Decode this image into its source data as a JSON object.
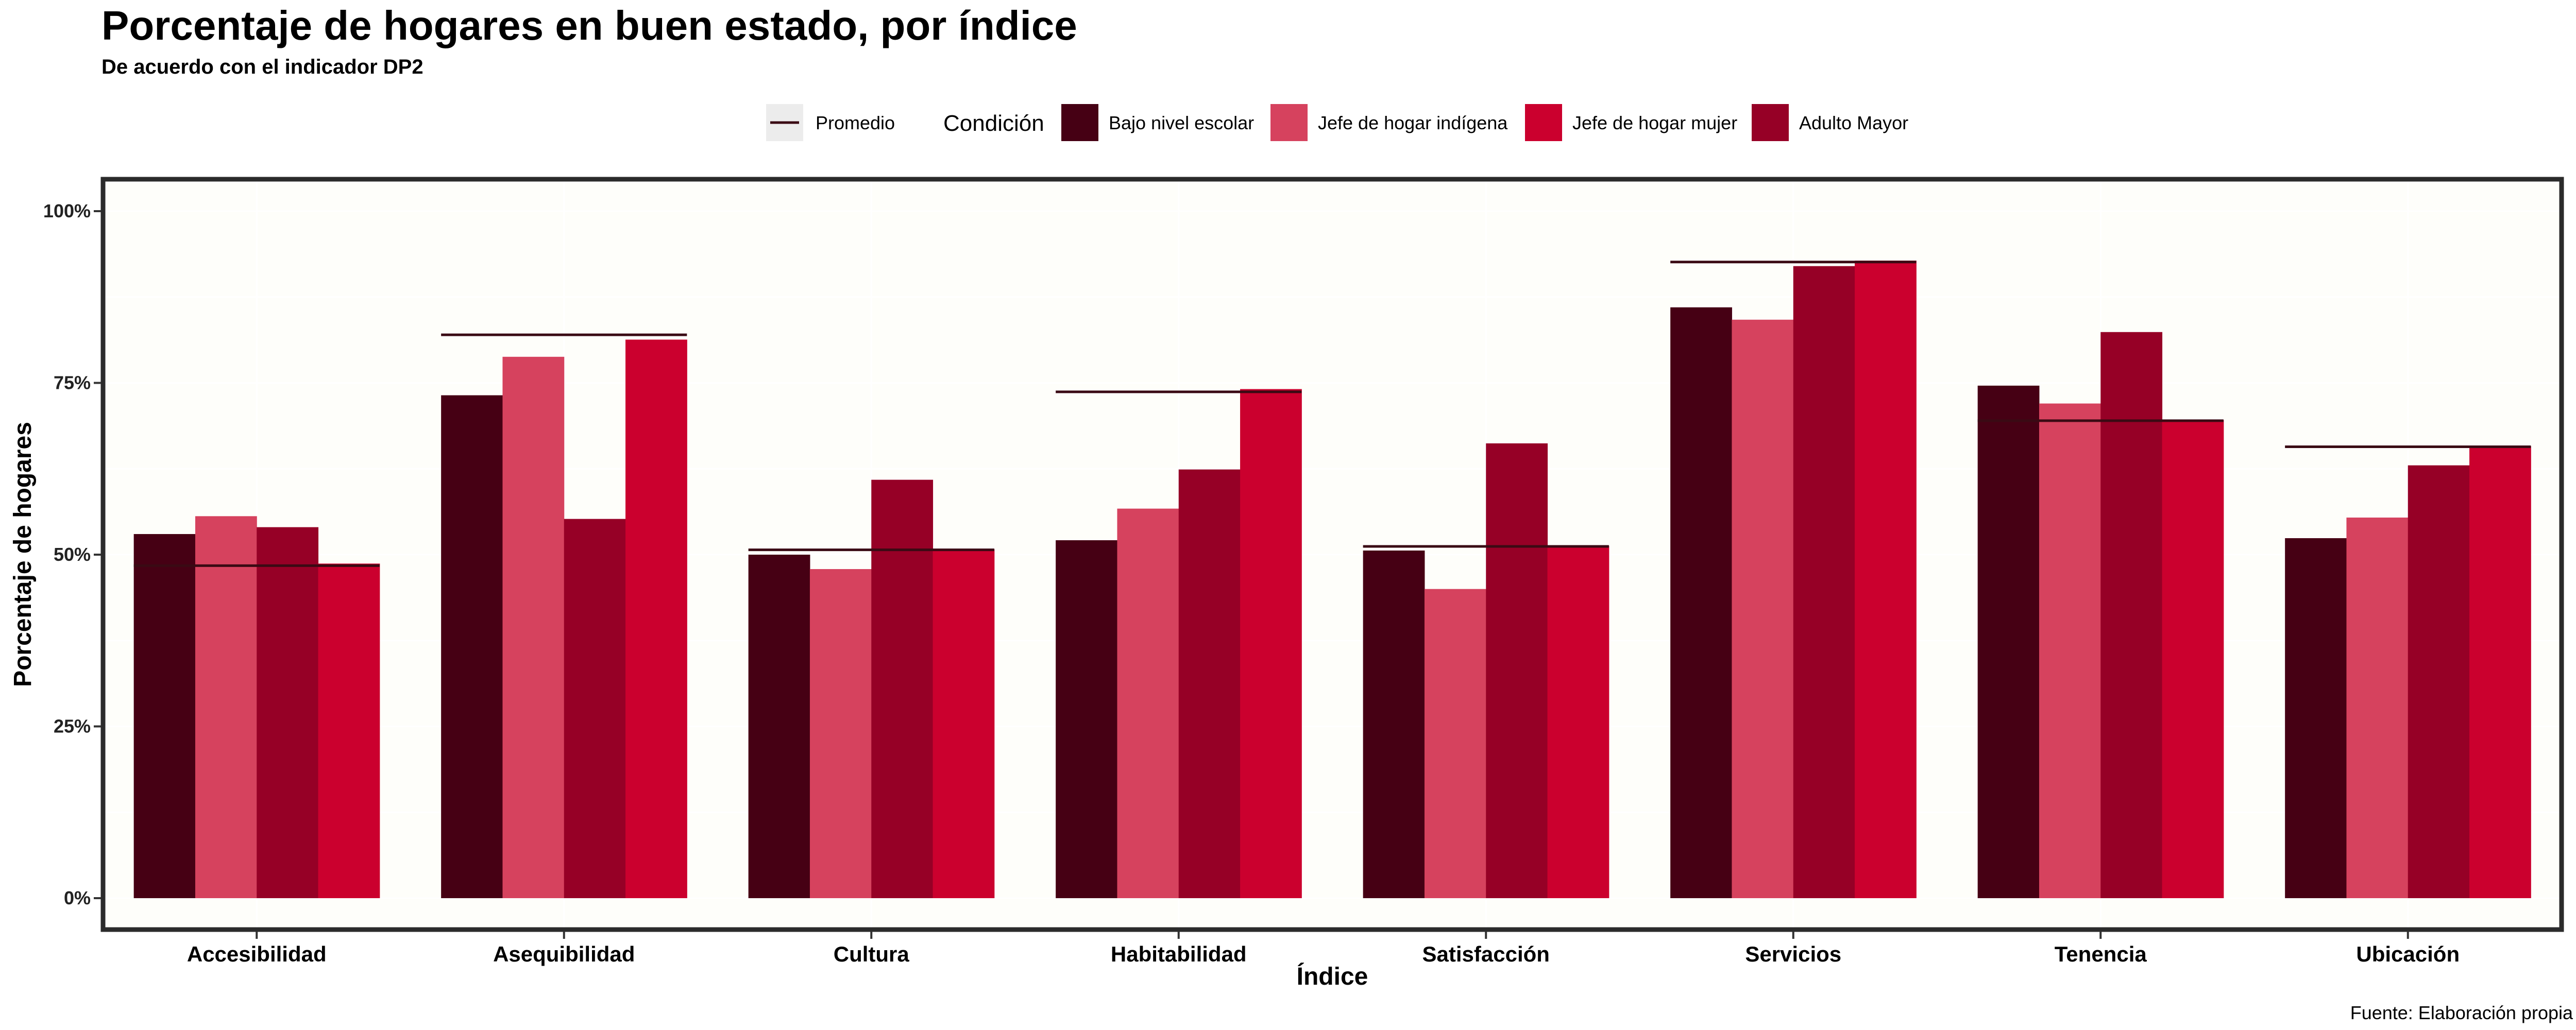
{
  "chart_data": {
    "type": "bar",
    "title": "Porcentaje de hogares en buen estado, por índice",
    "subtitle": "De acuerdo con el indicador DP2",
    "caption": "Fuente: Elaboración propia",
    "xlabel": "Índice",
    "ylabel": "Porcentaje de hogares",
    "ylim": [
      0,
      100
    ],
    "yticks": [
      "0%",
      "25%",
      "50%",
      "75%",
      "100%"
    ],
    "ytick_values": [
      0,
      25,
      50,
      75,
      100
    ],
    "legend_placement": "top",
    "legend_title": "Condición",
    "average_label": "Promedio",
    "categories": [
      "Accesibilidad",
      "Asequibilidad",
      "Cultura",
      "Habitabilidad",
      "Satisfacción",
      "Servicios",
      "Tenencia",
      "Ubicación"
    ],
    "series": [
      {
        "name": "Bajo nivel escolar",
        "color": "#460014",
        "values": [
          53.0,
          73.2,
          50.0,
          52.1,
          50.6,
          86.0,
          74.6,
          52.4
        ]
      },
      {
        "name": "Jefe de hogar indígena",
        "color": "#D6425E",
        "values": [
          55.6,
          78.8,
          47.9,
          56.7,
          45.0,
          84.2,
          72.0,
          55.4
        ]
      },
      {
        "name": "Adulto Mayor",
        "color": "#960026",
        "values": [
          54.0,
          55.2,
          60.9,
          62.4,
          66.2,
          92.0,
          82.4,
          63.0
        ]
      },
      {
        "name": "Jefe de hogar mujer",
        "color": "#CB002E",
        "values": [
          48.7,
          81.3,
          50.8,
          74.1,
          51.3,
          92.8,
          69.6,
          65.8
        ]
      }
    ],
    "legend_order": [
      "Bajo nivel escolar",
      "Jefe de hogar indígena",
      "Jefe de hogar mujer",
      "Adulto Mayor"
    ],
    "average": [
      48.4,
      82.0,
      50.7,
      73.7,
      51.2,
      92.6,
      69.5,
      65.7
    ],
    "average_color": "#3A0A14",
    "panel_background": "#FEFEFA",
    "grid": true
  }
}
